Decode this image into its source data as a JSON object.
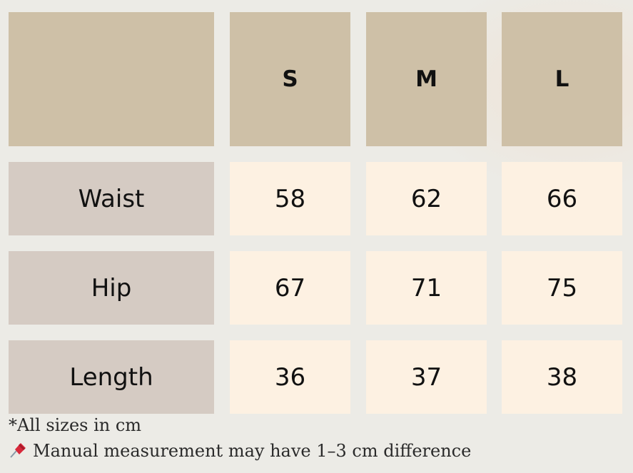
{
  "header": {
    "corner": "",
    "sizes": [
      "S",
      "M",
      "L"
    ]
  },
  "rows": [
    {
      "label": "Waist",
      "values": [
        "58",
        "62",
        "66"
      ]
    },
    {
      "label": "Hip",
      "values": [
        "67",
        "71",
        "75"
      ]
    },
    {
      "label": "Length",
      "values": [
        "36",
        "37",
        "38"
      ]
    }
  ],
  "notes": {
    "units": "*All sizes in cm",
    "icon": "pushpin-icon",
    "disclaimer": "Manual measurement may have 1–3 cm difference"
  },
  "colors": {
    "header": "#cec0a7",
    "label": "#d5cbc3",
    "value": "#fdf1e2"
  }
}
